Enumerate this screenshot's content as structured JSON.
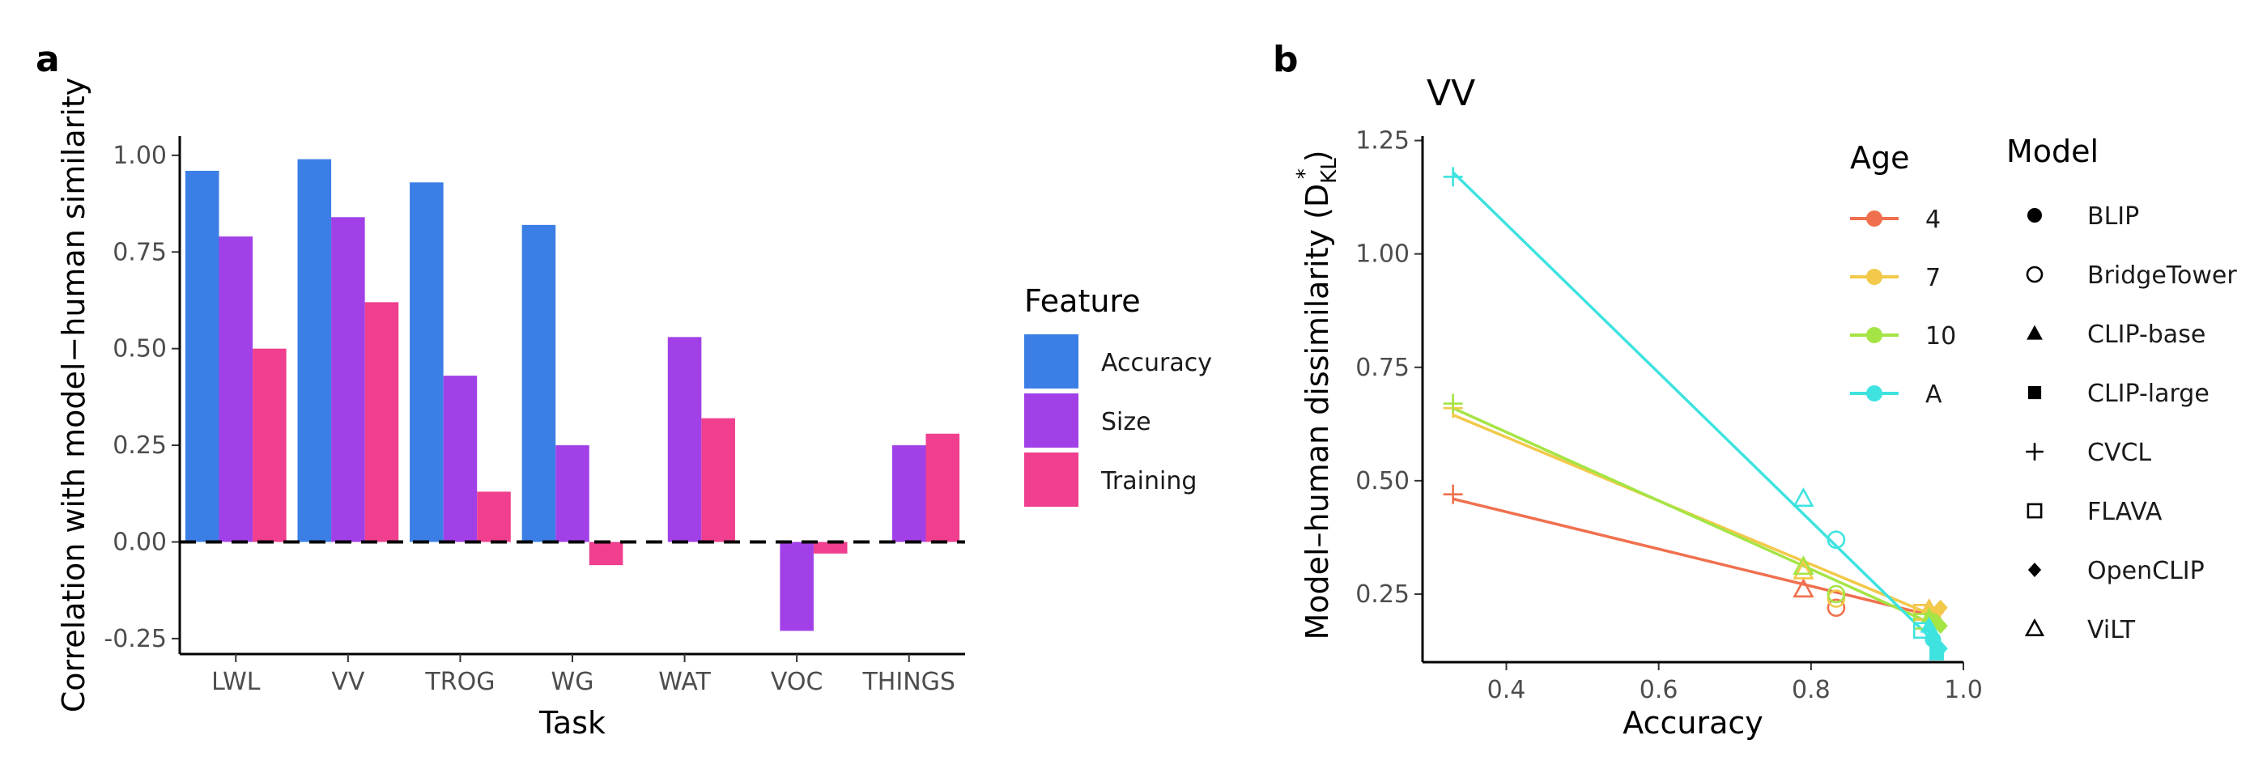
{
  "panel_labels": [
    "a",
    "b"
  ],
  "colors": {
    "Accuracy": "#3b7fe6",
    "Size": "#a240e8",
    "Training": "#ef3f8e",
    "age_4": "#f0704e",
    "age_7": "#f2c94a",
    "age_10": "#a5e445",
    "age_A": "#3ee3e0"
  },
  "chart_data": [
    {
      "type": "bar",
      "title": "",
      "xlabel": "Task",
      "ylabel": "Correlation with model−human similarity",
      "categories": [
        "LWL",
        "VV",
        "TROG",
        "WG",
        "WAT",
        "VOC",
        "THINGS"
      ],
      "series": [
        {
          "name": "Accuracy",
          "values": [
            0.96,
            0.99,
            0.93,
            0.82,
            null,
            null,
            null
          ]
        },
        {
          "name": "Size",
          "values": [
            0.79,
            0.84,
            0.43,
            0.25,
            0.53,
            -0.23,
            0.25
          ]
        },
        {
          "name": "Training",
          "values": [
            0.5,
            0.62,
            0.13,
            -0.06,
            0.32,
            -0.03,
            0.28
          ]
        }
      ],
      "ylim": [
        -0.29,
        1.05
      ],
      "yticks": [
        -0.25,
        0.0,
        0.25,
        0.5,
        0.75,
        1.0
      ],
      "ytick_labels": [
        "-0.25",
        "0.00",
        "0.25",
        "0.50",
        "0.75",
        "1.00"
      ],
      "reference_line": 0,
      "legend": {
        "title": "Feature",
        "position": "right",
        "entries": [
          "Accuracy",
          "Size",
          "Training"
        ]
      }
    },
    {
      "type": "scatter",
      "title": "VV",
      "xlabel": "Accuracy",
      "ylabel": "Model–human dissimilarity (D*KL)",
      "ylabel_main": "Model–human dissimilarity (D",
      "ylabel_sup": "*",
      "ylabel_sub": "KL",
      "ylabel_close": ")",
      "xlim": [
        0.29,
        1.0
      ],
      "ylim": [
        0.1,
        1.26
      ],
      "xticks": [
        0.4,
        0.6,
        0.8,
        1.0
      ],
      "xtick_labels": [
        "0.4",
        "0.6",
        "0.8",
        "1.0"
      ],
      "yticks": [
        0.25,
        0.5,
        0.75,
        1.0,
        1.25
      ],
      "ytick_labels": [
        "0.25",
        "0.50",
        "0.75",
        "1.00",
        "1.25"
      ],
      "age_legend": {
        "title": "Age",
        "entries": [
          "4",
          "7",
          "10",
          "A"
        ]
      },
      "model_legend": {
        "title": "Model",
        "entries": [
          "BLIP",
          "BridgeTower",
          "CLIP-base",
          "CLIP-large",
          "CVCL",
          "FLAVA",
          "OpenCLIP",
          "ViLT"
        ]
      },
      "model_markers": {
        "BLIP": "filled-circle",
        "BridgeTower": "open-circle",
        "CLIP-base": "filled-triangle",
        "CLIP-large": "filled-square",
        "CVCL": "plus",
        "FLAVA": "open-square",
        "OpenCLIP": "filled-diamond",
        "ViLT": "open-triangle"
      },
      "series": [
        {
          "age": "4",
          "fit": [
            [
              0.33,
              0.46
            ],
            [
              0.965,
              0.2
            ]
          ],
          "points": [
            {
              "model": "CVCL",
              "x": 0.33,
              "y": 0.47
            },
            {
              "model": "ViLT",
              "x": 0.79,
              "y": 0.26
            },
            {
              "model": "BridgeTower",
              "x": 0.833,
              "y": 0.22
            },
            {
              "model": "FLAVA",
              "x": 0.945,
              "y": 0.21
            },
            {
              "model": "CLIP-base",
              "x": 0.955,
              "y": 0.22
            },
            {
              "model": "OpenCLIP",
              "x": 0.965,
              "y": 0.21
            },
            {
              "model": "BLIP",
              "x": 0.96,
              "y": 0.2
            }
          ]
        },
        {
          "age": "7",
          "fit": [
            [
              0.33,
              0.645
            ],
            [
              0.965,
              0.2
            ]
          ],
          "points": [
            {
              "model": "CVCL",
              "x": 0.33,
              "y": 0.66
            },
            {
              "model": "ViLT",
              "x": 0.79,
              "y": 0.3
            },
            {
              "model": "BridgeTower",
              "x": 0.833,
              "y": 0.24
            },
            {
              "model": "FLAVA",
              "x": 0.945,
              "y": 0.21
            },
            {
              "model": "CLIP-base",
              "x": 0.955,
              "y": 0.22
            },
            {
              "model": "OpenCLIP",
              "x": 0.97,
              "y": 0.22
            },
            {
              "model": "BLIP",
              "x": 0.96,
              "y": 0.2
            }
          ]
        },
        {
          "age": "10",
          "fit": [
            [
              0.33,
              0.66
            ],
            [
              0.965,
              0.18
            ]
          ],
          "points": [
            {
              "model": "CVCL",
              "x": 0.33,
              "y": 0.67
            },
            {
              "model": "ViLT",
              "x": 0.79,
              "y": 0.31
            },
            {
              "model": "BridgeTower",
              "x": 0.833,
              "y": 0.25
            },
            {
              "model": "FLAVA",
              "x": 0.945,
              "y": 0.19
            },
            {
              "model": "CLIP-base",
              "x": 0.955,
              "y": 0.2
            },
            {
              "model": "OpenCLIP",
              "x": 0.97,
              "y": 0.18
            },
            {
              "model": "BLIP",
              "x": 0.96,
              "y": 0.19
            }
          ]
        },
        {
          "age": "A",
          "fit": [
            [
              0.33,
              1.18
            ],
            [
              0.965,
              0.14
            ]
          ],
          "points": [
            {
              "model": "CVCL",
              "x": 0.33,
              "y": 1.17
            },
            {
              "model": "ViLT",
              "x": 0.79,
              "y": 0.46
            },
            {
              "model": "BridgeTower",
              "x": 0.833,
              "y": 0.37
            },
            {
              "model": "FLAVA",
              "x": 0.945,
              "y": 0.17
            },
            {
              "model": "CLIP-base",
              "x": 0.955,
              "y": 0.18
            },
            {
              "model": "BLIP",
              "x": 0.96,
              "y": 0.15
            },
            {
              "model": "CLIP-large",
              "x": 0.965,
              "y": 0.12
            },
            {
              "model": "OpenCLIP",
              "x": 0.97,
              "y": 0.13
            }
          ]
        }
      ]
    }
  ]
}
